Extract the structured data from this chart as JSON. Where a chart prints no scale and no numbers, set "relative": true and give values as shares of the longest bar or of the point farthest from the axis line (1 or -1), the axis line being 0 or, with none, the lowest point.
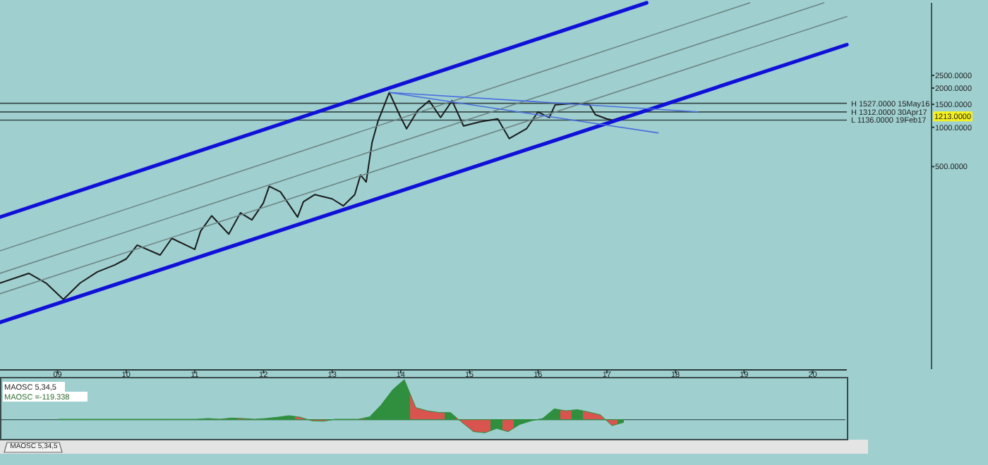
{
  "chart_data": [
    {
      "type": "line",
      "log": "y",
      "xlim": [
        "2008-03",
        "2020-07"
      ],
      "ylim": [
        14,
        9000
      ],
      "xticks": [
        {
          "value": "2009-01",
          "label": "09"
        },
        {
          "value": "2010-01",
          "label": "10"
        },
        {
          "value": "2011-01",
          "label": "11"
        },
        {
          "value": "2012-01",
          "label": "12"
        },
        {
          "value": "2013-01",
          "label": "13"
        },
        {
          "value": "2014-01",
          "label": "14"
        },
        {
          "value": "2015-01",
          "label": "15"
        },
        {
          "value": "2016-01",
          "label": "16"
        },
        {
          "value": "2017-01",
          "label": "17"
        },
        {
          "value": "2018-01",
          "label": "18"
        },
        {
          "value": "2019-01",
          "label": "19"
        },
        {
          "value": "2020-01",
          "label": "20"
        }
      ],
      "yticks": [
        {
          "value": 500,
          "label": "500.0000"
        },
        {
          "value": 1000,
          "label": "1000.0000"
        },
        {
          "value": 1500,
          "label": "1500.0000"
        },
        {
          "value": 2000,
          "label": "2000.0000"
        },
        {
          "value": 2500,
          "label": "2500.0000"
        }
      ],
      "series": [
        {
          "color": "#1a1a1a",
          "x": [
            "2008-03",
            "2008-08",
            "2008-11",
            "2009-02",
            "2009-05",
            "2009-08",
            "2009-11",
            "2010-01",
            "2010-03",
            "2010-07",
            "2010-09",
            "2011-01",
            "2011-02",
            "2011-04",
            "2011-07",
            "2011-09",
            "2011-11",
            "2012-01",
            "2012-02",
            "2012-04",
            "2012-07",
            "2012-08",
            "2012-10",
            "2013-01",
            "2013-03",
            "2013-05",
            "2013-06",
            "2013-07",
            "2013-08",
            "2013-09",
            "2013-11",
            "2014-01",
            "2014-02",
            "2014-04",
            "2014-06",
            "2014-08",
            "2014-10",
            "2014-12",
            "2015-03",
            "2015-06",
            "2015-08",
            "2015-11",
            "2016-01",
            "2016-03",
            "2016-04",
            "2016-07",
            "2016-10",
            "2016-11",
            "2017-01",
            "2017-02",
            "2017-04"
          ],
          "values": [
            64,
            76,
            64,
            48,
            64,
            78,
            88,
            98,
            125,
            105,
            141,
            116,
            160,
            210,
            152,
            221,
            195,
            263,
            353,
            320,
            205,
            269,
            305,
            283,
            250,
            305,
            431,
            381,
            762,
            1105,
            1850,
            1189,
            975,
            1346,
            1600,
            1189,
            1600,
            1025,
            1105,
            1161,
            820,
            975,
            1313,
            1189,
            1486,
            1520,
            1486,
            1250,
            1161,
            1136,
            1213
          ]
        },
        {
          "color": "#1010d8",
          "x": [
            "2008-03",
            "2017-08"
          ],
          "values": [
            205,
            9000
          ]
        },
        {
          "color": "#1010d8",
          "x": [
            "2008-03",
            "2020-07"
          ],
          "values": [
            32,
            4300
          ]
        },
        {
          "color": "#6f8585",
          "x": [
            "2008-03",
            "2019-02"
          ],
          "values": [
            113,
            9000
          ]
        },
        {
          "color": "#6f8585",
          "x": [
            "2008-03",
            "2020-03"
          ],
          "values": [
            76,
            9000
          ]
        },
        {
          "color": "#6f8585",
          "x": [
            "2008-03",
            "2020-07"
          ],
          "values": [
            53,
            7070
          ]
        },
        {
          "color": "#4a6ee0",
          "x": [
            "2013-11",
            "2018-05"
          ],
          "values": [
            1850,
            1313
          ]
        },
        {
          "color": "#4a6ee0",
          "x": [
            "2013-11",
            "2017-10"
          ],
          "values": [
            1850,
            906
          ]
        }
      ],
      "ref_lines": [
        {
          "axis": "y",
          "value": 1527,
          "label": "H 1527.0000 15May16",
          "color": "#3a4a4a"
        },
        {
          "axis": "y",
          "value": 1312,
          "label": "H 1312.0000 30Apr17",
          "color": "#3a4a4a"
        },
        {
          "axis": "y",
          "value": 1136,
          "label": "L 1136.0000 19Feb17",
          "color": "#3a4a4a"
        }
      ],
      "annotations": [
        "1213.0000"
      ]
    },
    {
      "type": "area",
      "relative": true,
      "subtitle": "MAOSC =-119.338",
      "annotations": [
        "MAOSC 5,34,5",
        "MAOSC 5,34,5"
      ],
      "categories": [
        null,
        null,
        null,
        null,
        null,
        null,
        null,
        null,
        null,
        null,
        null,
        null,
        null,
        null,
        null,
        null,
        null,
        null,
        null,
        null,
        null,
        null,
        null,
        null,
        null,
        null,
        null,
        null,
        null,
        null,
        null,
        null,
        null,
        null,
        null,
        null,
        null,
        null,
        null,
        null,
        null,
        null,
        null,
        null,
        null,
        null,
        null,
        null,
        null,
        null
      ],
      "series": [
        {
          "color": "#2f8f3f",
          "values": [
            0.01,
            0.01,
            0.01,
            0.01,
            0.01,
            0.01,
            0.01,
            0.01,
            0.01,
            0.01,
            0.01,
            0.01,
            0.01,
            0.03,
            0.01,
            0.04,
            0.03,
            0.01,
            0.03,
            0.06,
            0.1,
            0.06,
            -0.03,
            -0.04,
            0.01,
            0.01,
            0.01,
            0.07,
            0.37,
            0.75,
            1,
            0.3,
            0.22,
            0.18,
            0.18,
            -0.07,
            -0.3,
            -0.33,
            -0.22,
            -0.3,
            -0.12,
            -0.03,
            0.03,
            0.27,
            0.22,
            0.25,
            0.19,
            0.12,
            -0.15,
            -0.07
          ],
          "colors": [
            "#2f8f3f",
            "#d9534f",
            "#2f8f3f",
            "#d9534f",
            "#2f8f3f",
            "#d9534f",
            "#2f8f3f",
            "#d9534f",
            "#d9534f",
            "#2f8f3f",
            "#d9534f",
            "#d9534f",
            "#2f8f3f",
            "#2f8f3f",
            "#d9534f",
            "#2f8f3f",
            "#d9534f",
            "#d9534f",
            "#2f8f3f",
            "#2f8f3f",
            "#2f8f3f",
            "#d9534f",
            "#d9534f",
            "#d9534f",
            "#2f8f3f",
            "#2f8f3f",
            "#d9534f",
            "#2f8f3f",
            "#2f8f3f",
            "#2f8f3f",
            "#2f8f3f",
            "#d9534f",
            "#d9534f",
            "#d9534f",
            "#2f8f3f",
            "#d9534f",
            "#d9534f",
            "#d9534f",
            "#2f8f3f",
            "#d9534f",
            "#2f8f3f",
            "#2f8f3f",
            "#2f8f3f",
            "#2f8f3f",
            "#d9534f",
            "#2f8f3f",
            "#d9534f",
            "#d9534f",
            "#d9534f",
            "#2f8f3f"
          ]
        }
      ]
    }
  ]
}
